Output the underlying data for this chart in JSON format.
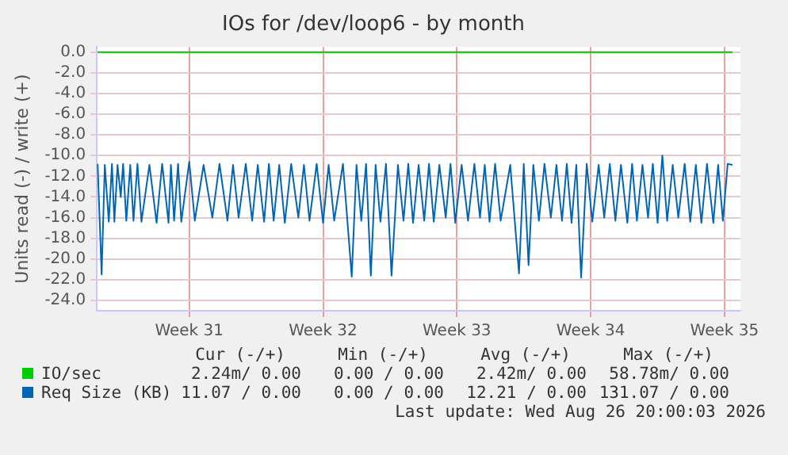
{
  "chart_data": {
    "type": "line",
    "title": "IOs for /dev/loop6 - by month",
    "ylabel": "Units read (-) / write (+)",
    "xlim": [
      "2026-07-24T04:00",
      "2026-08-26T20:00"
    ],
    "xticks": [
      {
        "value": "2026-07-29",
        "label": "Week 31"
      },
      {
        "value": "2026-08-05",
        "label": "Week 32"
      },
      {
        "value": "2026-08-12",
        "label": "Week 33"
      },
      {
        "value": "2026-08-19",
        "label": "Week 34"
      },
      {
        "value": "2026-08-26",
        "label": "Week 35"
      }
    ],
    "ylim": [
      -25,
      0.5
    ],
    "yticks": [
      {
        "value": 0,
        "label": "0.0"
      },
      {
        "value": -2,
        "label": "-2.0"
      },
      {
        "value": -4,
        "label": "-4.0"
      },
      {
        "value": -6,
        "label": "-6.0"
      },
      {
        "value": -8,
        "label": "-8.0"
      },
      {
        "value": -10,
        "label": "-10.0"
      },
      {
        "value": -12,
        "label": "-12.0"
      },
      {
        "value": -14,
        "label": "-14.0"
      },
      {
        "value": -16,
        "label": "-16.0"
      },
      {
        "value": -18,
        "label": "-18.0"
      },
      {
        "value": -20,
        "label": "-20.0"
      },
      {
        "value": -22,
        "label": "-22.0"
      },
      {
        "value": -24,
        "label": "-24.0"
      }
    ],
    "grid": true,
    "legend": "bottom",
    "marker": "none",
    "line_style": "solid",
    "series": [
      {
        "name": "IO/sec",
        "color": "#00cc00",
        "x": [
          "2026-07-24T05:00",
          "2026-08-26T10:00"
        ],
        "values": [
          0,
          0
        ]
      },
      {
        "name": "Req Size (KB)",
        "color": "#0066b3",
        "x": [
          "2026-07-24T05:00",
          "2026-07-24T10:00",
          "2026-07-24T14:00",
          "2026-07-24T19:00",
          "2026-07-24T23:00",
          "2026-07-25T02:00",
          "2026-07-25T06:00",
          "2026-07-25T10:00",
          "2026-07-25T13:00",
          "2026-07-25T17:00",
          "2026-07-25T22:00",
          "2026-07-26T02:00",
          "2026-07-26T07:00",
          "2026-07-26T12:00",
          "2026-07-26T22:00",
          "2026-07-27T07:00",
          "2026-07-27T14:00",
          "2026-07-27T22:00",
          "2026-07-28T01:00",
          "2026-07-28T05:00",
          "2026-07-28T10:00",
          "2026-07-28T14:00",
          "2026-07-29T00:00",
          "2026-07-29T07:00",
          "2026-07-29T18:00",
          "2026-07-30T05:00",
          "2026-07-30T14:00",
          "2026-07-31T00:00",
          "2026-07-31T07:00",
          "2026-07-31T14:00",
          "2026-07-31T23:00",
          "2026-08-01T07:00",
          "2026-08-01T14:00",
          "2026-08-01T22:00",
          "2026-08-02T04:00",
          "2026-08-02T10:00",
          "2026-08-02T17:00",
          "2026-08-03T00:00",
          "2026-08-03T08:00",
          "2026-08-03T17:00",
          "2026-08-04T00:00",
          "2026-08-04T07:00",
          "2026-08-04T16:00",
          "2026-08-05T00:00",
          "2026-08-05T07:00",
          "2026-08-05T14:00",
          "2026-08-06T01:00",
          "2026-08-06T12:00",
          "2026-08-06T18:00",
          "2026-08-07T00:00",
          "2026-08-07T06:00",
          "2026-08-07T12:00",
          "2026-08-07T18:00",
          "2026-08-08T00:00",
          "2026-08-08T07:00",
          "2026-08-08T14:00",
          "2026-08-08T22:00",
          "2026-08-09T05:00",
          "2026-08-09T11:00",
          "2026-08-09T17:00",
          "2026-08-10T00:00",
          "2026-08-10T07:00",
          "2026-08-10T13:00",
          "2026-08-10T19:00",
          "2026-08-11T02:00",
          "2026-08-11T10:00",
          "2026-08-11T16:00",
          "2026-08-11T22:00",
          "2026-08-12T06:00",
          "2026-08-12T14:00",
          "2026-08-12T22:00",
          "2026-08-13T05:00",
          "2026-08-13T11:00",
          "2026-08-13T17:00",
          "2026-08-14T00:00",
          "2026-08-14T07:00",
          "2026-08-14T19:00",
          "2026-08-15T06:00",
          "2026-08-15T12:00",
          "2026-08-15T18:00",
          "2026-08-16T00:00",
          "2026-08-16T07:00",
          "2026-08-16T14:00",
          "2026-08-16T22:00",
          "2026-08-17T05:00",
          "2026-08-17T12:00",
          "2026-08-17T18:00",
          "2026-08-18T00:00",
          "2026-08-18T06:00",
          "2026-08-18T12:00",
          "2026-08-18T19:00",
          "2026-08-19T02:00",
          "2026-08-19T10:00",
          "2026-08-19T17:00",
          "2026-08-20T00:00",
          "2026-08-20T07:00",
          "2026-08-20T14:00",
          "2026-08-20T22:00",
          "2026-08-21T04:00",
          "2026-08-21T10:00",
          "2026-08-21T17:00",
          "2026-08-22T00:00",
          "2026-08-22T06:00",
          "2026-08-22T12:00",
          "2026-08-22T18:00",
          "2026-08-23T00:00",
          "2026-08-23T07:00",
          "2026-08-23T14:00",
          "2026-08-23T22:00",
          "2026-08-24T05:00",
          "2026-08-24T12:00",
          "2026-08-24T19:00",
          "2026-08-25T02:00",
          "2026-08-25T10:00",
          "2026-08-25T16:00",
          "2026-08-25T22:00",
          "2026-08-26T04:00",
          "2026-08-26T10:00"
        ],
        "values": [
          -10.8,
          -21.5,
          -10.9,
          -16.4,
          -10.8,
          -16.4,
          -10.9,
          -14.0,
          -10.8,
          -16.3,
          -10.9,
          -16.3,
          -10.8,
          -16.4,
          -10.9,
          -16.5,
          -10.8,
          -16.5,
          -10.9,
          -16.3,
          -10.8,
          -16.4,
          -10.6,
          -16.3,
          -10.9,
          -16.0,
          -10.8,
          -16.3,
          -10.9,
          -16.0,
          -10.8,
          -16.3,
          -10.9,
          -16.4,
          -10.8,
          -16.3,
          -10.9,
          -16.5,
          -10.8,
          -16.0,
          -10.9,
          -16.3,
          -10.8,
          -16.5,
          -10.9,
          -16.3,
          -10.8,
          -21.7,
          -10.9,
          -16.3,
          -10.8,
          -21.6,
          -10.9,
          -16.4,
          -10.8,
          -21.6,
          -10.9,
          -16.3,
          -10.8,
          -16.5,
          -10.9,
          -16.3,
          -10.8,
          -16.4,
          -10.9,
          -16.0,
          -10.8,
          -16.5,
          -10.9,
          -16.3,
          -10.8,
          -16.0,
          -10.9,
          -16.4,
          -10.8,
          -16.3,
          -10.9,
          -21.4,
          -10.8,
          -20.6,
          -10.9,
          -16.3,
          -10.8,
          -16.0,
          -10.9,
          -16.3,
          -10.8,
          -16.5,
          -10.9,
          -21.8,
          -10.8,
          -16.4,
          -10.9,
          -16.0,
          -10.8,
          -16.3,
          -10.9,
          -16.5,
          -10.8,
          -16.3,
          -10.9,
          -16.0,
          -10.8,
          -16.5,
          -10.0,
          -16.3,
          -10.9,
          -16.0,
          -10.8,
          -16.4,
          -10.9,
          -16.5,
          -10.8,
          -16.5,
          -10.9,
          -16.3,
          -10.8,
          -10.9
        ]
      }
    ],
    "annotations": [
      "Cur (-/+)",
      "Min (-/+)",
      "Avg (-/+)",
      "Max (-/+)",
      "2.24m/ 0.00",
      "0.00 / 0.00",
      "2.42m/ 0.00",
      "58.78m/ 0.00",
      "11.07 / 0.00",
      "0.00 / 0.00",
      "12.21 / 0.00",
      "131.07 / 0.00",
      "Last update: Wed Aug 26 20:00:03 2026"
    ]
  }
}
